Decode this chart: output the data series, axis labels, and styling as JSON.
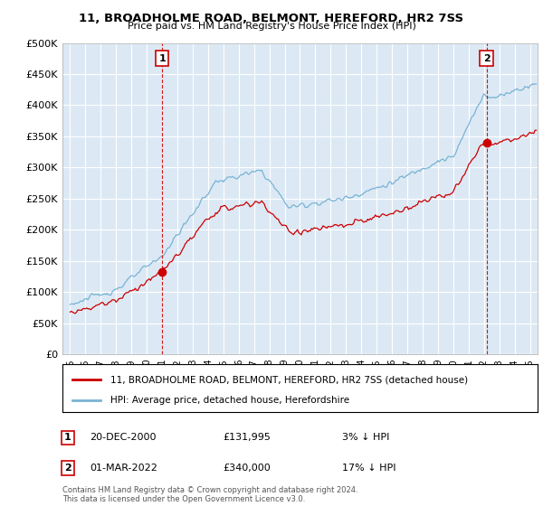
{
  "title": "11, BROADHOLME ROAD, BELMONT, HEREFORD, HR2 7SS",
  "subtitle": "Price paid vs. HM Land Registry's House Price Index (HPI)",
  "ylabel_ticks": [
    "£0",
    "£50K",
    "£100K",
    "£150K",
    "£200K",
    "£250K",
    "£300K",
    "£350K",
    "£400K",
    "£450K",
    "£500K"
  ],
  "ytick_values": [
    0,
    50000,
    100000,
    150000,
    200000,
    250000,
    300000,
    350000,
    400000,
    450000,
    500000
  ],
  "ylim": [
    0,
    500000
  ],
  "xlim_start": 1994.5,
  "xlim_end": 2025.5,
  "hpi_color": "#7ab3d4",
  "price_color": "#cc0000",
  "sale1_x": 2001.0,
  "sale1_y": 131995,
  "sale2_x": 2022.17,
  "sale2_y": 340000,
  "sale1_label": "1",
  "sale2_label": "2",
  "legend_label1": "11, BROADHOLME ROAD, BELMONT, HEREFORD, HR2 7SS (detached house)",
  "legend_label2": "HPI: Average price, detached house, Herefordshire",
  "background_color": "#ffffff",
  "plot_bg_color": "#dce9f5",
  "grid_color": "#ffffff",
  "footer": "Contains HM Land Registry data © Crown copyright and database right 2024.\nThis data is licensed under the Open Government Licence v3.0."
}
